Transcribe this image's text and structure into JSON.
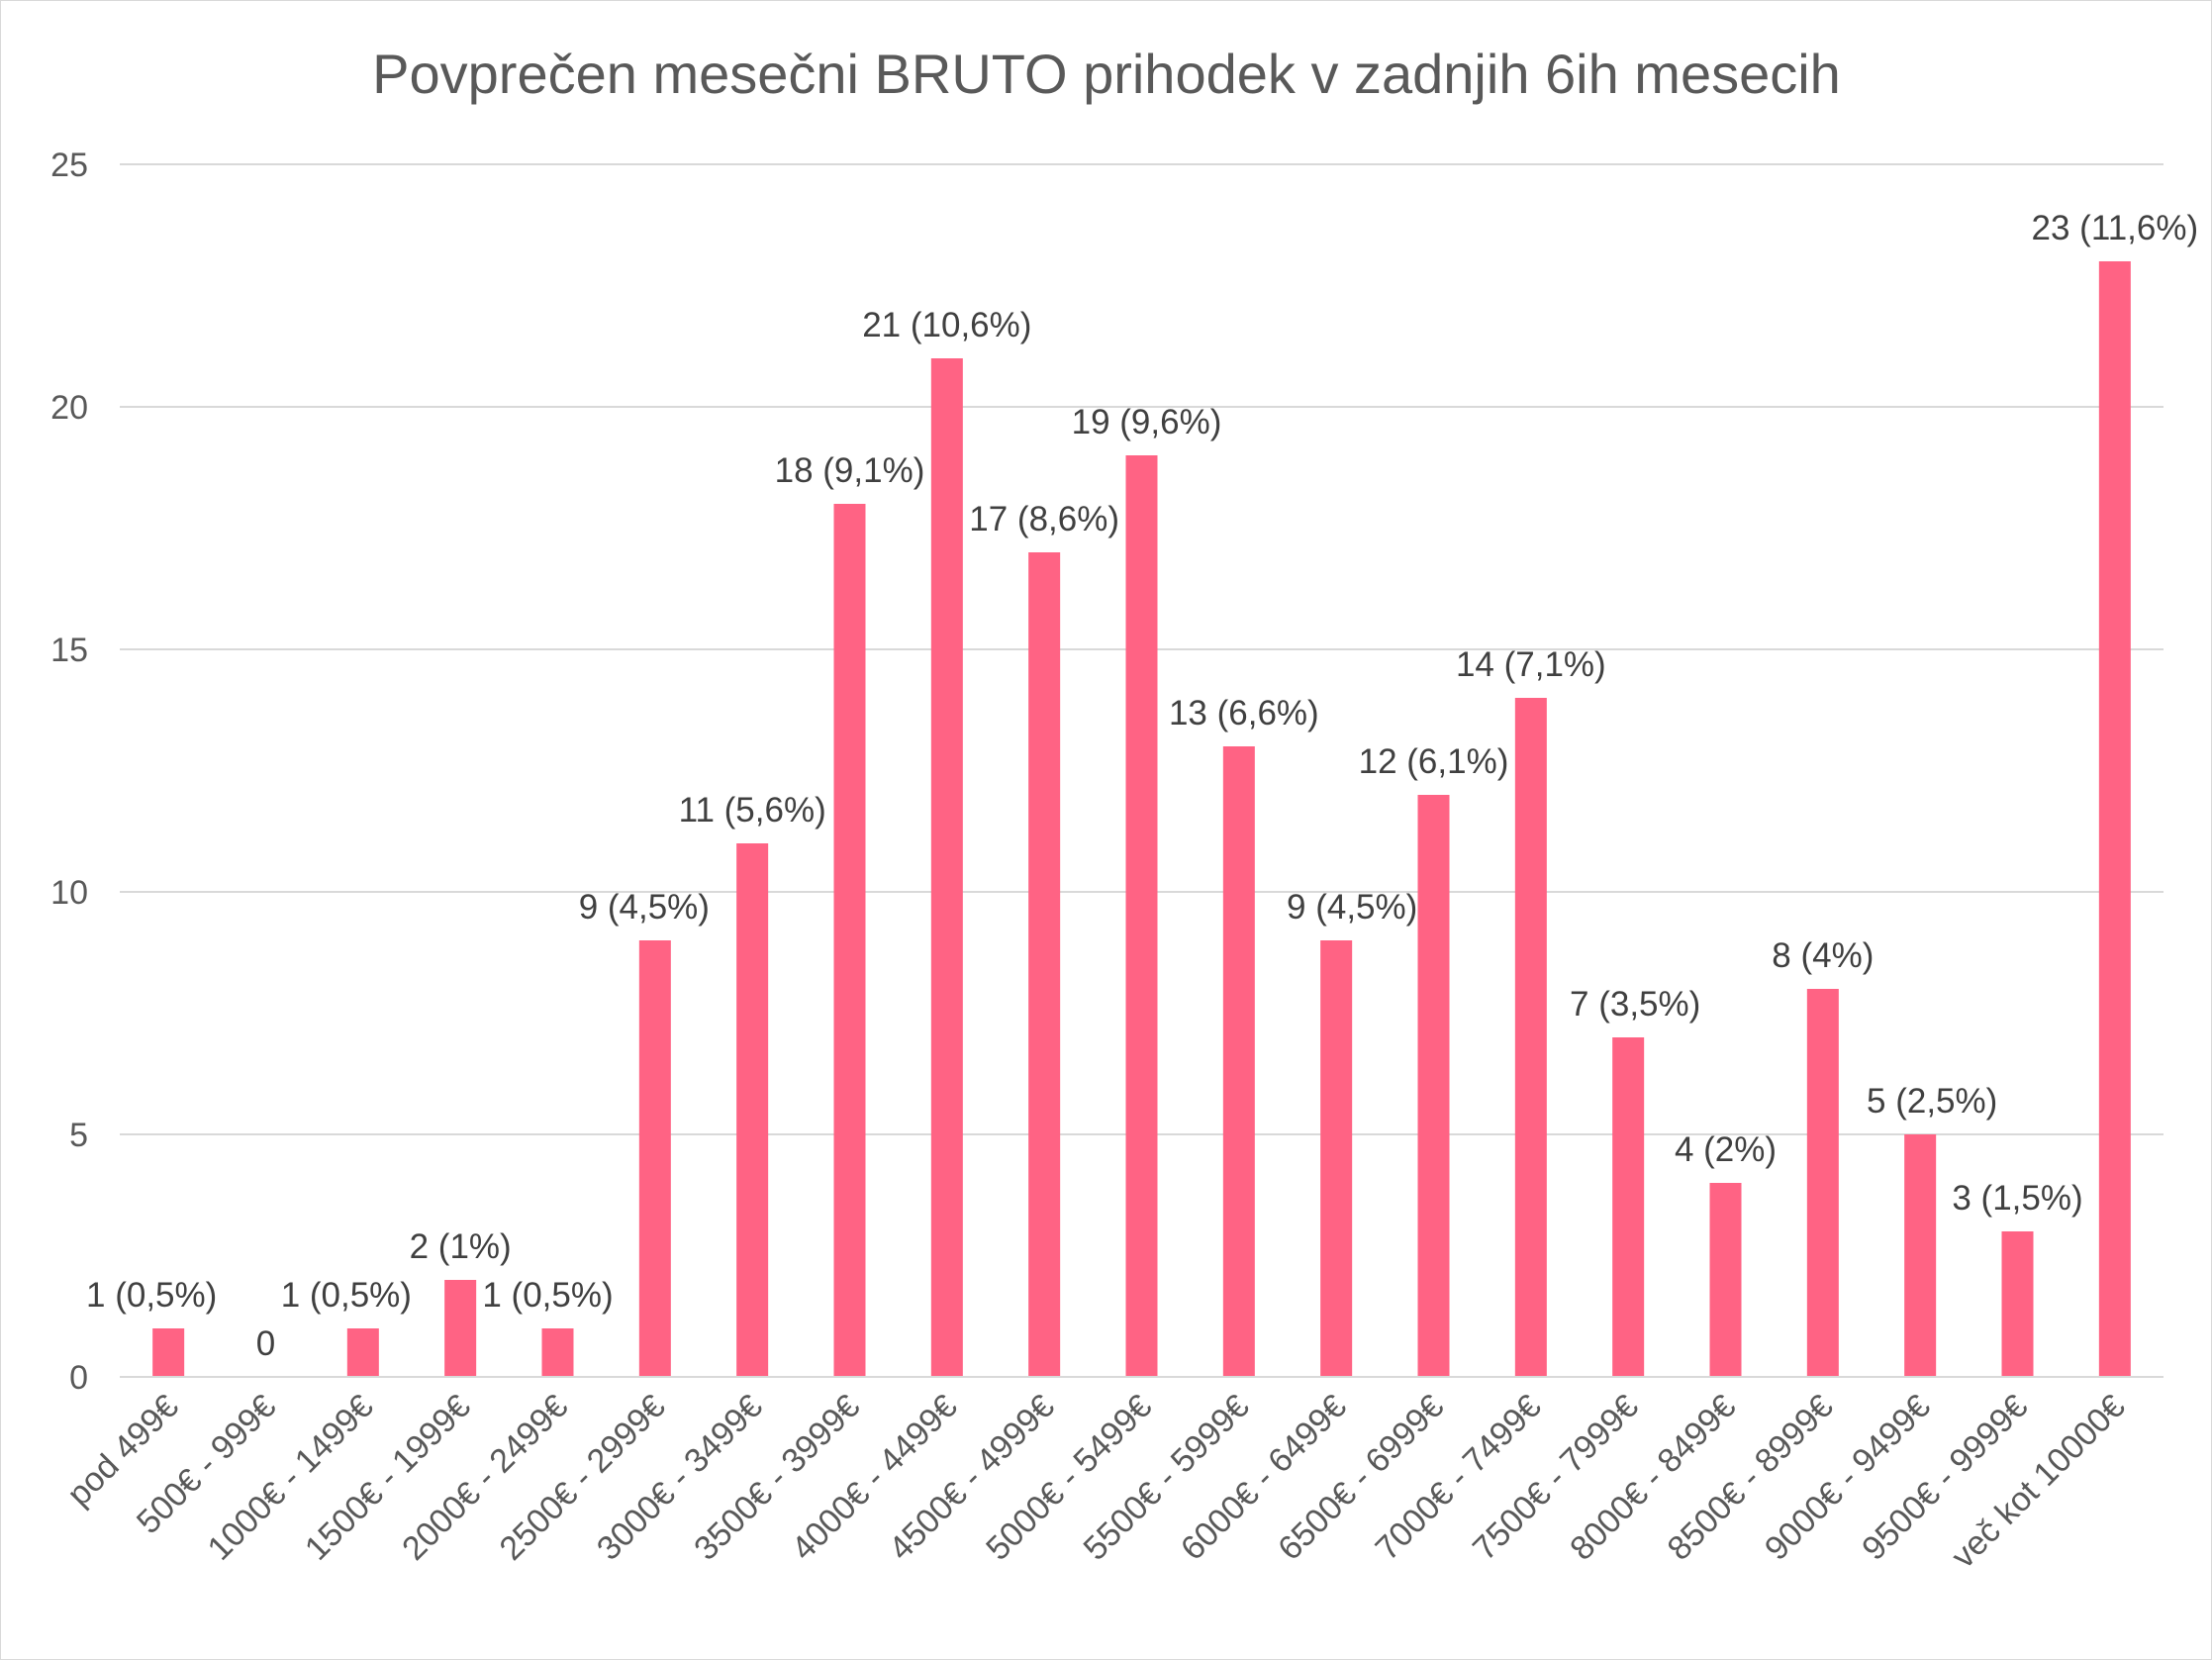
{
  "chart_data": {
    "type": "bar",
    "title": "Povprečen mesečni BRUTO prihodek v zadnjih 6ih mesecih",
    "xlabel": "",
    "ylabel": "",
    "ylim": [
      0,
      25
    ],
    "yticks": [
      0,
      5,
      10,
      15,
      20,
      25
    ],
    "grid": true,
    "legend": "none",
    "bar_color": "#FF6384",
    "gridline_color": "#d9d9d9",
    "categories": [
      "pod 499€",
      "500€ - 999€",
      "1000€ - 1499€",
      "1500€ - 1999€",
      "2000€ - 2499€",
      "2500€ - 2999€",
      "3000€ - 3499€",
      "3500€ - 3999€",
      "4000€ - 4499€",
      "4500€ - 4999€",
      "5000€ - 5499€",
      "5500€ - 5999€",
      "6000€ - 6499€",
      "6500€ - 6999€",
      "7000€ - 7499€",
      "7500€ - 7999€",
      "8000€ - 8499€",
      "8500€ - 8999€",
      "9000€ - 9499€",
      "9500€ - 9999€",
      "več kot 10000€"
    ],
    "values": [
      1,
      0,
      1,
      2,
      1,
      9,
      11,
      18,
      21,
      17,
      19,
      13,
      9,
      12,
      14,
      7,
      4,
      8,
      5,
      3,
      23
    ],
    "data_labels": [
      "1 (0,5%)",
      "0",
      "1 (0,5%)",
      "2 (1%)",
      "1 (0,5%)",
      "9 (4,5%)",
      "11 (5,6%)",
      "18 (9,1%)",
      "21 (10,6%)",
      "17 (8,6%)",
      "19 (9,6%)",
      "13 (6,6%)",
      "9 (4,5%)",
      "12 (6,1%)",
      "14 (7,1%)",
      "7 (3,5%)",
      "4 (2%)",
      "8 (4%)",
      "5 (2,5%)",
      "3 (1,5%)",
      "23 (11,6%)"
    ]
  }
}
